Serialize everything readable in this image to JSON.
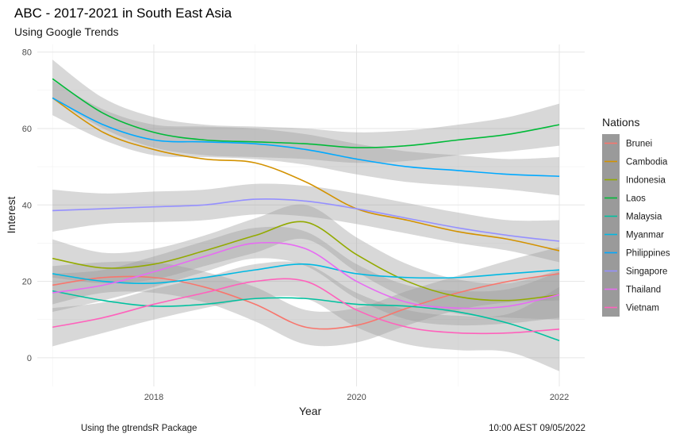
{
  "chart_data": {
    "type": "line",
    "title": "ABC - 2017-2021 in South East Asia",
    "subtitle": "Using Google Trends",
    "xlabel": "Year",
    "ylabel": "Interest",
    "caption_left": "Using the gtrendsR Package",
    "caption_right": "10:00 AEST 09/05/2022",
    "x_ticks": [
      2018,
      2020,
      2022
    ],
    "y_ticks": [
      0,
      20,
      40,
      60,
      80
    ],
    "xlim": [
      2016.85,
      2022.25
    ],
    "ylim": [
      -7.5,
      82
    ],
    "legend_title": "Nations",
    "legend_position": "right",
    "smoothing": "loess with confidence band",
    "x": [
      2017.0,
      2017.5,
      2018.0,
      2018.5,
      2019.0,
      2019.5,
      2020.0,
      2020.5,
      2021.0,
      2021.5,
      2022.0
    ],
    "series": [
      {
        "name": "Brunei",
        "color": "#F8766D",
        "values": [
          19,
          21,
          21,
          18.5,
          14,
          8,
          8.5,
          13,
          17,
          20,
          22
        ],
        "band": [
          [
            14,
            24
          ],
          [
            17,
            25
          ],
          [
            17,
            25
          ],
          [
            14.5,
            22.5
          ],
          [
            9.5,
            18.5
          ],
          [
            3.5,
            12.5
          ],
          [
            4,
            13
          ],
          [
            8.5,
            17.5
          ],
          [
            12.5,
            21.5
          ],
          [
            14.5,
            25.5
          ],
          [
            15,
            29
          ]
        ]
      },
      {
        "name": "Cambodia",
        "color": "#D39200",
        "values": [
          68,
          59,
          54.5,
          52,
          51,
          46,
          39,
          36,
          33,
          31,
          28
        ]
      },
      {
        "name": "Indonesia",
        "color": "#93AA00",
        "values": [
          26,
          23.5,
          24.5,
          28,
          32,
          35.5,
          27,
          20,
          16,
          15,
          16.5
        ],
        "band": [
          [
            21,
            31
          ],
          [
            19.5,
            27.5
          ],
          [
            20.5,
            28.5
          ],
          [
            24,
            32
          ],
          [
            27.5,
            36.5
          ],
          [
            31,
            40
          ],
          [
            22.5,
            31.5
          ],
          [
            15.5,
            24.5
          ],
          [
            11.5,
            20.5
          ],
          [
            10.5,
            19.5
          ],
          [
            10,
            23
          ]
        ]
      },
      {
        "name": "Laos",
        "color": "#00BA38",
        "values": [
          73,
          64,
          59,
          57,
          56.5,
          56,
          55,
          55.5,
          57,
          58.5,
          61
        ],
        "band": [
          [
            68,
            78
          ],
          [
            60,
            68
          ],
          [
            55,
            63
          ],
          [
            53,
            61
          ],
          [
            52.5,
            60.5
          ],
          [
            52,
            60
          ],
          [
            51,
            59
          ],
          [
            51.5,
            59.5
          ],
          [
            53,
            61
          ],
          [
            54,
            63
          ],
          [
            55.5,
            66.5
          ]
        ]
      },
      {
        "name": "Malaysia",
        "color": "#00C19F",
        "values": [
          17.5,
          15,
          13.5,
          14,
          15.5,
          15.5,
          14,
          13.5,
          12,
          9,
          4.5
        ]
      },
      {
        "name": "Myanmar",
        "color": "#00B9E3",
        "values": [
          22,
          20,
          19.5,
          21,
          23,
          24.5,
          22,
          21,
          21,
          22,
          23
        ]
      },
      {
        "name": "Philippines",
        "color": "#00A9FF",
        "values": [
          68,
          61,
          57,
          56.5,
          56,
          54.5,
          52,
          50,
          49,
          48,
          47.5
        ],
        "band": [
          [
            63.5,
            72.5
          ],
          [
            57,
            65
          ],
          [
            53,
            61
          ],
          [
            52.5,
            60.5
          ],
          [
            52,
            60
          ],
          [
            50.5,
            58.5
          ],
          [
            48,
            56
          ],
          [
            46,
            54
          ],
          [
            45,
            53
          ],
          [
            44,
            52
          ],
          [
            42.5,
            52.5
          ]
        ]
      },
      {
        "name": "Singapore",
        "color": "#9590FF",
        "values": [
          38.5,
          39,
          39.5,
          40,
          41.5,
          41,
          39,
          36.5,
          34,
          32,
          30.5
        ],
        "band": [
          [
            33,
            44
          ],
          [
            35,
            43
          ],
          [
            35.5,
            43.5
          ],
          [
            36,
            44
          ],
          [
            37.5,
            45.5
          ],
          [
            37,
            45
          ],
          [
            35,
            43
          ],
          [
            32.5,
            40.5
          ],
          [
            30,
            38
          ],
          [
            28,
            36
          ],
          [
            25,
            36
          ]
        ]
      },
      {
        "name": "Thailand",
        "color": "#E76BF3",
        "values": [
          17,
          19,
          22.5,
          26.5,
          30,
          28.5,
          20,
          14.5,
          13,
          13.5,
          16.5
        ],
        "band": [
          [
            12,
            22
          ],
          [
            15,
            23
          ],
          [
            18.5,
            26.5
          ],
          [
            22.5,
            30.5
          ],
          [
            26,
            34
          ],
          [
            24,
            33
          ],
          [
            15.5,
            24.5
          ],
          [
            10,
            19
          ],
          [
            8.5,
            17.5
          ],
          [
            9,
            18
          ],
          [
            10.5,
            22.5
          ]
        ]
      },
      {
        "name": "Vietnam",
        "color": "#FF62BC",
        "values": [
          8,
          10.5,
          14,
          17,
          20,
          20,
          12.5,
          8,
          6.5,
          6.5,
          7.5
        ],
        "band": [
          [
            3,
            13
          ],
          [
            6.5,
            14.5
          ],
          [
            10,
            18
          ],
          [
            13,
            21
          ],
          [
            15.5,
            24.5
          ],
          [
            15.5,
            24.5
          ],
          [
            8,
            17
          ],
          [
            3.5,
            12.5
          ],
          [
            2,
            11
          ],
          [
            1.5,
            11.5
          ],
          [
            -3.5,
            18.5
          ]
        ]
      }
    ]
  }
}
